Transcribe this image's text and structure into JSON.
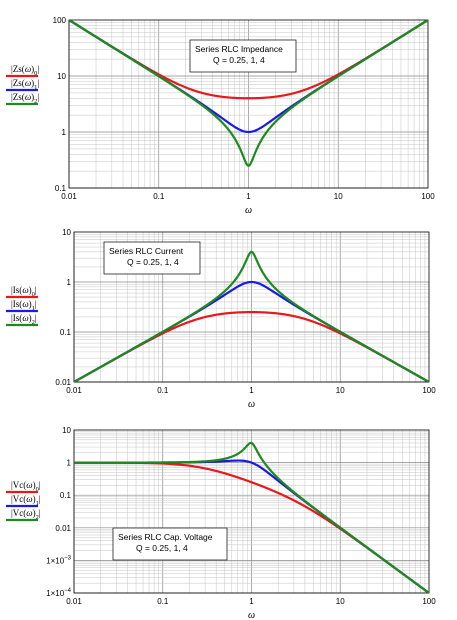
{
  "chart_data": [
    {
      "type": "line",
      "title": "",
      "annotation_lines": [
        "Series RLC Impedance",
        "Q = 0.25, 1, 4"
      ],
      "xlabel": "ω",
      "xscale": "log",
      "yscale": "log",
      "xlim": [
        0.01,
        100
      ],
      "ylim": [
        0.1,
        100
      ],
      "x_ticks": [
        "0.01",
        "0.1",
        "1",
        "10",
        "100"
      ],
      "y_ticks": [
        "0.1",
        "1",
        "10",
        "100"
      ],
      "grid": true,
      "legend_position": "left",
      "series": [
        {
          "legend": [
            "|Zs(",
            "ω",
            ")",
            "0",
            "|"
          ],
          "color": "#e8191c",
          "Q": 0.25,
          "x": [
            0.01,
            0.1,
            0.3,
            1,
            3,
            10,
            100
          ],
          "y": [
            100,
            10.8,
            5.6,
            4.0,
            5.6,
            10.8,
            100
          ]
        },
        {
          "legend": [
            "|Zs(",
            "ω",
            ")",
            "1",
            "|"
          ],
          "color": "#1a1ae6",
          "Q": 1,
          "x": [
            0.01,
            0.1,
            0.3,
            1,
            3,
            10,
            100
          ],
          "y": [
            100,
            10.0,
            3.48,
            1.0,
            3.48,
            10.0,
            100
          ]
        },
        {
          "legend": [
            "|Zs(",
            "ω",
            ")",
            "2",
            "|"
          ],
          "color": "#1e8a1e",
          "Q": 4,
          "x": [
            0.01,
            0.1,
            0.3,
            1,
            3,
            10,
            100
          ],
          "y": [
            100,
            9.9,
            3.34,
            0.25,
            3.34,
            9.9,
            100
          ]
        }
      ]
    },
    {
      "type": "line",
      "title": "",
      "annotation_lines": [
        "Series RLC Current",
        "Q = 0.25, 1, 4"
      ],
      "xlabel": "ω",
      "xscale": "log",
      "yscale": "log",
      "xlim": [
        0.01,
        100
      ],
      "ylim": [
        0.01,
        10
      ],
      "x_ticks": [
        "0.01",
        "0.1",
        "1",
        "10",
        "100"
      ],
      "y_ticks": [
        "0.01",
        "0.1",
        "1",
        "10"
      ],
      "grid": true,
      "legend_position": "left",
      "series": [
        {
          "legend": [
            "|Is(",
            "ω",
            ")",
            "0",
            "|"
          ],
          "color": "#e8191c",
          "Q": 0.25,
          "x": [
            0.01,
            0.1,
            0.3,
            1,
            3,
            10,
            100
          ],
          "y": [
            0.01,
            0.093,
            0.18,
            0.25,
            0.18,
            0.093,
            0.01
          ]
        },
        {
          "legend": [
            "|Is(",
            "ω",
            ")",
            "1",
            "|"
          ],
          "color": "#1a1ae6",
          "Q": 1,
          "x": [
            0.01,
            0.1,
            0.3,
            1,
            3,
            10,
            100
          ],
          "y": [
            0.01,
            0.1,
            0.29,
            1.0,
            0.29,
            0.1,
            0.01
          ]
        },
        {
          "legend": [
            "|Is(",
            "ω",
            ")",
            "2",
            "|"
          ],
          "color": "#1e8a1e",
          "Q": 4,
          "x": [
            0.01,
            0.1,
            0.3,
            1,
            3,
            10,
            100
          ],
          "y": [
            0.01,
            0.1,
            0.3,
            4.0,
            0.3,
            0.1,
            0.01
          ]
        }
      ]
    },
    {
      "type": "line",
      "title": "",
      "annotation_lines": [
        "Series RLC Cap. Voltage",
        "Q = 0.25, 1, 4"
      ],
      "xlabel": "ω",
      "xscale": "log",
      "yscale": "log",
      "xlim": [
        0.01,
        100
      ],
      "ylim": [
        0.0001,
        10
      ],
      "x_ticks": [
        "0.01",
        "0.1",
        "1",
        "10",
        "100"
      ],
      "y_ticks": [
        {
          "mant": "1×10",
          "exp": "−4"
        },
        {
          "mant": "1×10",
          "exp": "−3"
        },
        {
          "mant": "0.01",
          "exp": ""
        },
        {
          "mant": "0.1",
          "exp": ""
        },
        {
          "mant": "1",
          "exp": ""
        },
        {
          "mant": "10",
          "exp": ""
        }
      ],
      "grid": true,
      "legend_position": "left",
      "series": [
        {
          "legend": [
            "|Vc(",
            "ω",
            ")",
            "0",
            "|"
          ],
          "color": "#e8191c",
          "Q": 0.25,
          "x": [
            0.01,
            0.1,
            0.3,
            1,
            3,
            10,
            100
          ],
          "y": [
            1.0,
            0.93,
            0.6,
            0.25,
            0.06,
            0.0093,
            0.0001
          ]
        },
        {
          "legend": [
            "|Vc(",
            "ω",
            ")",
            "1",
            "|"
          ],
          "color": "#1a1ae6",
          "Q": 1,
          "x": [
            0.01,
            0.1,
            0.3,
            1,
            3,
            10,
            100
          ],
          "y": [
            1.0,
            1.0,
            0.96,
            1.0,
            0.1,
            0.01,
            0.0001
          ]
        },
        {
          "legend": [
            "|Vc(",
            "ω",
            ")",
            "2",
            "|"
          ],
          "color": "#1e8a1e",
          "Q": 4,
          "x": [
            0.01,
            0.1,
            0.3,
            1,
            3,
            10,
            100
          ],
          "y": [
            1.0,
            1.01,
            1.09,
            4.0,
            0.11,
            0.01,
            0.0001
          ]
        }
      ]
    }
  ]
}
